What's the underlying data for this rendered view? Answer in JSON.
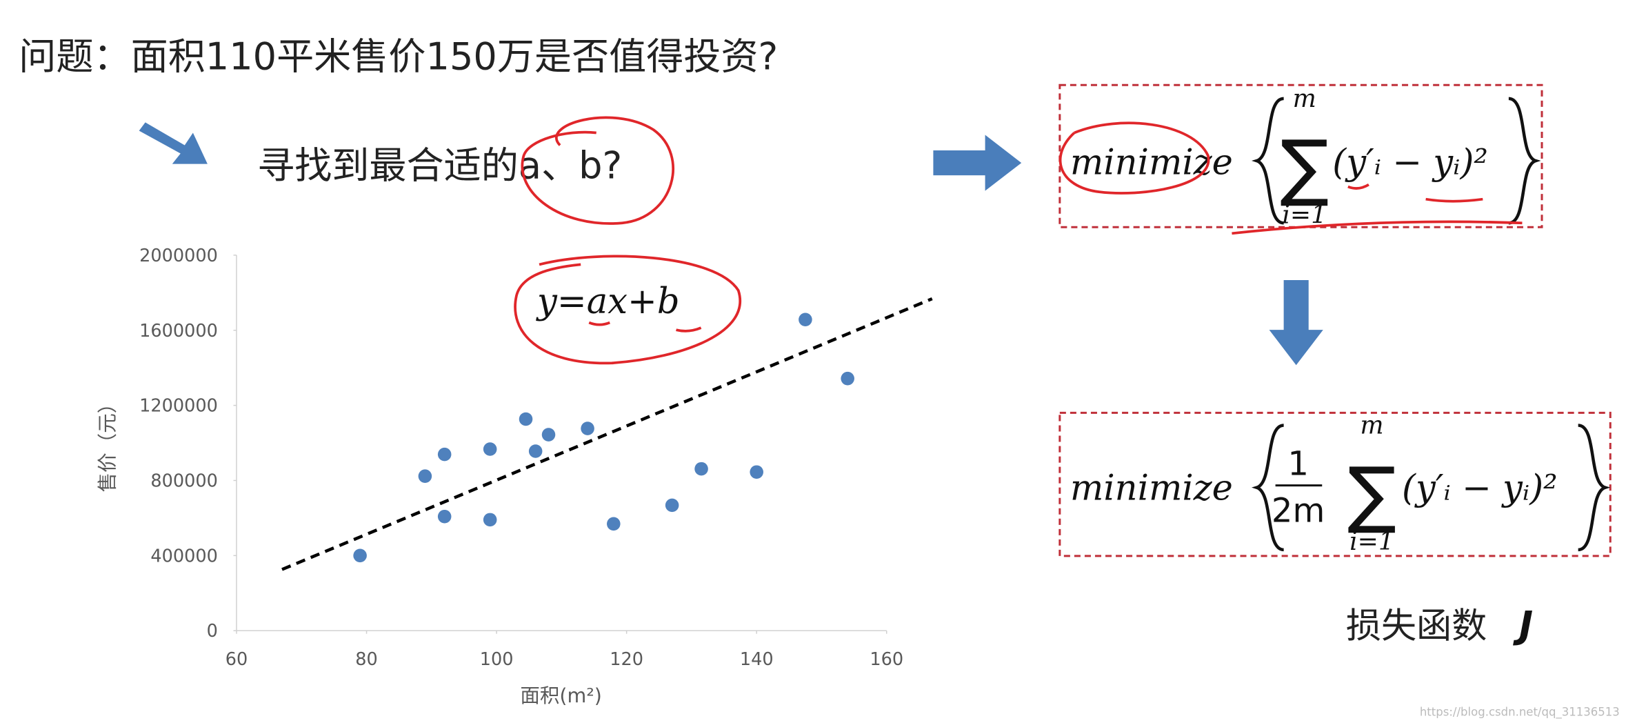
{
  "question": "问题：面积110平米售价150万是否值得投资?",
  "subtitle": "寻找到最合适的a、b?",
  "equation": "y=ax+b",
  "formula1": {
    "minimize": "minimize",
    "sum_symbol": "∑",
    "upper": "m",
    "lower": "i=1",
    "expression": "(y′ᵢ − yᵢ)²"
  },
  "formula2": {
    "minimize": "minimize",
    "numerator": "1",
    "denominator": "2m",
    "sum_symbol": "∑",
    "upper": "m",
    "lower": "i=1",
    "expression": "(y′ᵢ − yᵢ)²"
  },
  "loss_label": {
    "text": "损失函数",
    "symbol": "J"
  },
  "watermark": "https://blog.csdn.net/qq_31136513",
  "chart_data": {
    "type": "scatter",
    "x_label": "面积(m²)",
    "y_label": "售价（元）",
    "series": [
      {
        "color": "#4f81bd",
        "x": [
          79,
          89,
          92,
          92,
          99,
          99,
          104.5,
          106,
          108,
          114,
          118,
          127,
          131.5,
          140,
          147.5,
          154
        ],
        "values": [
          400000,
          823000,
          939000,
          608000,
          967000,
          591000,
          1127000,
          956000,
          1044000,
          1077000,
          569000,
          668000,
          862000,
          845000,
          1657000,
          1343000
        ]
      }
    ],
    "trend_line": {
      "color": "#000000",
      "x": [
        67,
        167
      ],
      "values": [
        326000,
        1768000
      ]
    },
    "xlim": [
      60,
      160
    ],
    "xticks": [
      60,
      80,
      100,
      120,
      140,
      160
    ],
    "ylim": [
      0,
      2000000
    ],
    "yticks": [
      0,
      400000,
      800000,
      1200000,
      1600000,
      2000000
    ],
    "grid": false
  }
}
